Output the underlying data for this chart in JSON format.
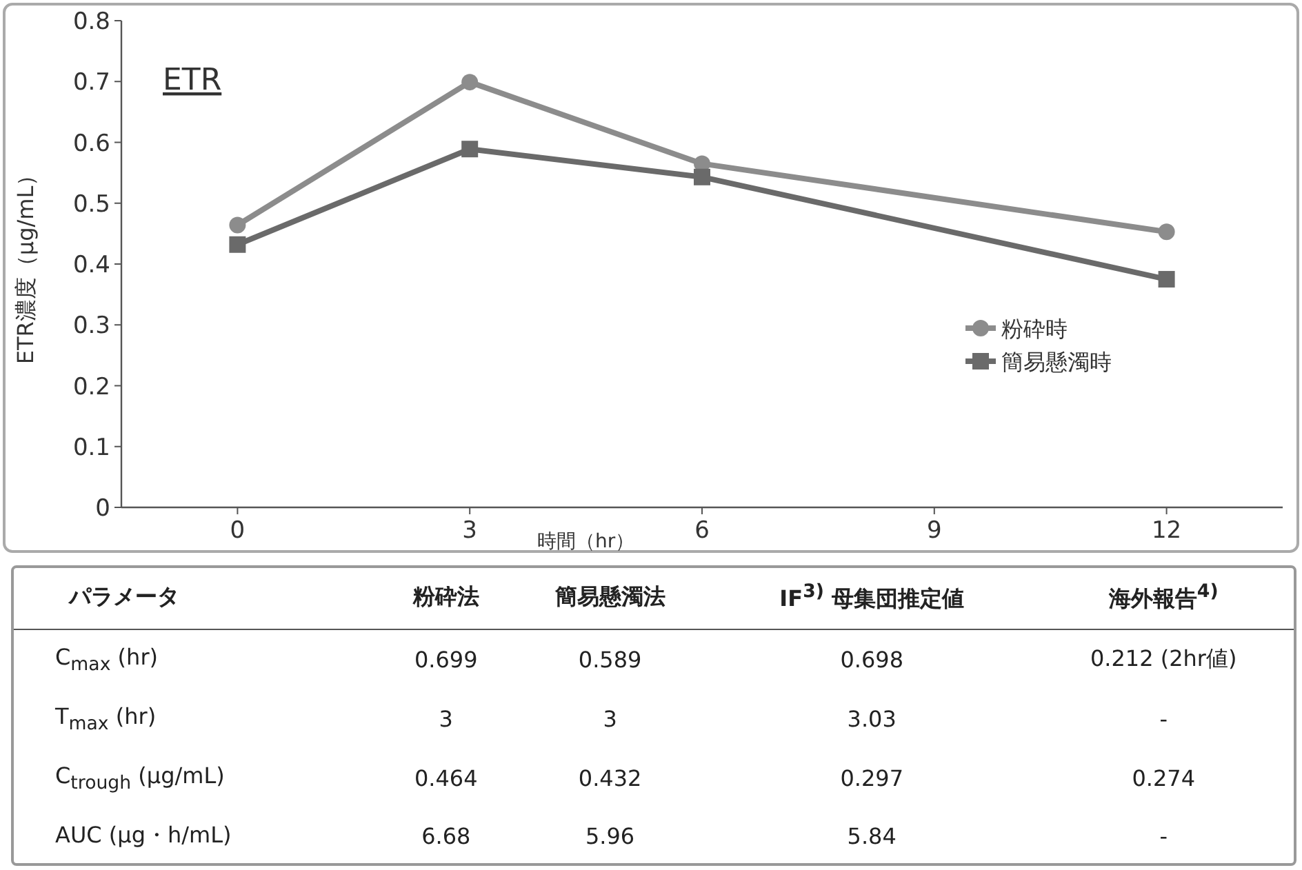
{
  "chart_data": [
    {
      "type": "line",
      "title": "ETR",
      "xlabel": "時間（hr）",
      "ylabel": "ETR濃度（μg/mL）",
      "xlim": [
        -1.5,
        13.5
      ],
      "xticks": [
        0,
        3,
        6,
        9,
        12
      ],
      "ylim": [
        0,
        0.8
      ],
      "yticks": [
        0,
        0.1,
        0.2,
        0.3,
        0.4,
        0.5,
        0.6,
        0.7,
        0.8
      ],
      "legend": "right",
      "line_style": "solid",
      "series": [
        {
          "name": "粉砕時",
          "color": "#8c8c8c",
          "marker": "circle",
          "x": [
            0,
            3,
            6,
            12
          ],
          "values": [
            0.464,
            0.699,
            0.565,
            0.453
          ]
        },
        {
          "name": "簡易懸濁時",
          "color": "#6a6a6a",
          "marker": "square",
          "x": [
            0,
            3,
            6,
            12
          ],
          "values": [
            0.432,
            0.589,
            0.543,
            0.375
          ]
        }
      ]
    },
    {
      "type": "other",
      "ylabel": "パラメータ",
      "categories": [
        "粉砕法",
        "簡易懸濁法",
        "IF$^{3)}$ 母集団推定値",
        "海外報告$^{4)}$"
      ],
      "y_categories": [
        "C$_{max}$ (hr)",
        "T$_{max}$ (hr)",
        "C$_{trough}$ (μg/mL)",
        "AUC (μg・h/mL)"
      ],
      "cell_labels": [
        [
          "0.699",
          "0.589",
          "0.698",
          "0.212 (2hr値)"
        ],
        [
          "3",
          "3",
          "3.03",
          "-"
        ],
        [
          "0.464",
          "0.432",
          "0.297",
          "0.274"
        ],
        [
          "6.68",
          "5.96",
          "5.84",
          "-"
        ]
      ]
    }
  ]
}
